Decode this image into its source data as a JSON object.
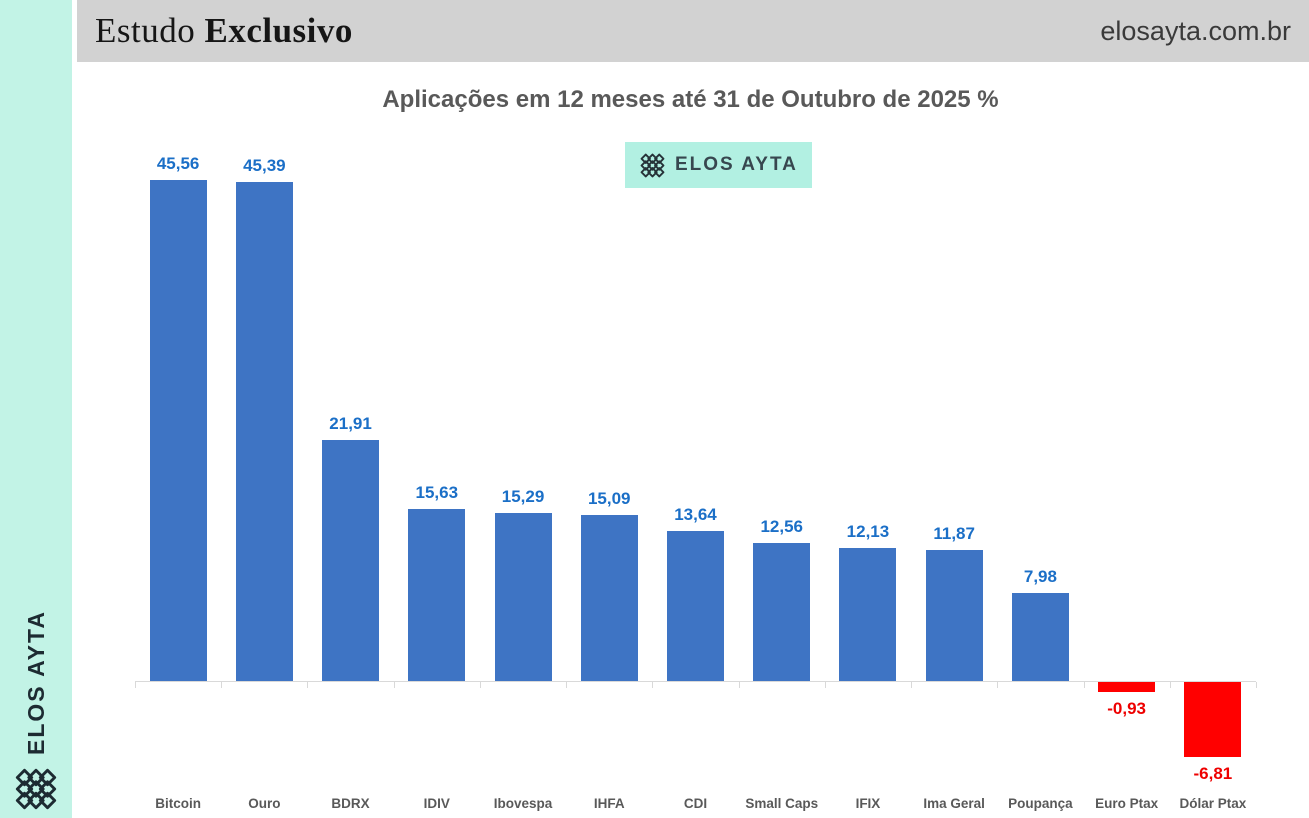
{
  "brand_colors": {
    "sidebar_mint": "#c2f3e6",
    "badge_mint": "#b2f0e2",
    "header_gray": "#d2d2d2"
  },
  "sidebar": {
    "brand": "ELOS AYTA"
  },
  "header": {
    "study_regular": "Estudo ",
    "study_bold": "Exclusivo",
    "website": "elosayta.com.br"
  },
  "badge": {
    "label": "ELOS AYTA"
  },
  "chart_data": {
    "type": "bar",
    "title": "Aplicações em 12 meses até 31 de Outubro de 2025 %",
    "categories": [
      "Bitcoin",
      "Ouro",
      "BDRX",
      "IDIV",
      "Ibovespa",
      "IHFA",
      "CDI",
      "Small Caps",
      "IFIX",
      "Ima Geral",
      "Poupança",
      "Euro Ptax",
      "Dólar Ptax"
    ],
    "values": [
      45.56,
      45.39,
      21.91,
      15.63,
      15.29,
      15.09,
      13.64,
      12.56,
      12.13,
      11.87,
      7.98,
      -0.93,
      -6.81
    ],
    "value_labels": [
      "45,56",
      "45,39",
      "21,91",
      "15,63",
      "15,29",
      "15,09",
      "13,64",
      "12,56",
      "12,13",
      "11,87",
      "7,98",
      "-0,93",
      "-6,81"
    ],
    "xlabel": "",
    "ylabel": "",
    "ylim": [
      -8,
      50
    ],
    "grid": false,
    "legend_position": "none",
    "colors": {
      "positive_bar": "#3e74c4",
      "negative_bar": "#ff0000",
      "positive_label": "#1b6fc7",
      "negative_label": "#ee0000",
      "axis": "#d9d9d9",
      "category_label": "#595959",
      "title": "#595959"
    }
  }
}
